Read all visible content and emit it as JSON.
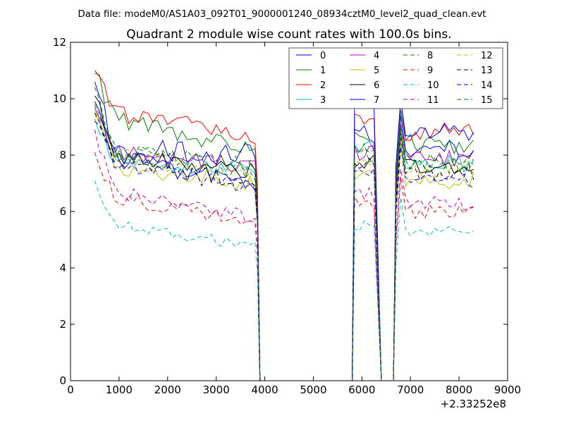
{
  "chart_data": {
    "type": "line",
    "header": "Data file: modeM0/AS1A03_092T01_9000001240_08934cztM0_level2_quad_clean.evt",
    "title": "Quadrant 2 module wise count rates with 100.0s bins.",
    "xlabel": "",
    "ylabel": "",
    "x_offset_label": "+2.33252e8",
    "xlim": [
      0,
      9000
    ],
    "ylim": [
      0,
      12
    ],
    "x_ticks": [
      0,
      1000,
      2000,
      3000,
      4000,
      5000,
      6000,
      7000,
      8000,
      9000
    ],
    "y_ticks": [
      0,
      2,
      4,
      6,
      8,
      10,
      12
    ],
    "x_tick_labels": [
      "0",
      "1000",
      "2000",
      "3000",
      "4000",
      "5000",
      "6000",
      "7000",
      "8000",
      "9000"
    ],
    "y_tick_labels": [
      "0",
      "2",
      "4",
      "6",
      "8",
      "10",
      "12"
    ],
    "grid": false,
    "legend_position": "top-right",
    "bins_seconds": 100.0,
    "segments": [
      {
        "x_start": 500,
        "x_end": 3800
      },
      {
        "x_start": 5850,
        "x_end": 6250
      },
      {
        "x_start": 6700,
        "x_end": 8350
      }
    ],
    "series": [
      {
        "name": "0",
        "color": "#0000ff",
        "dash": "solid",
        "seg_levels": [
          8.1,
          8.6,
          8.2
        ],
        "start_value": 10.6,
        "settle_value": 8.2,
        "end_value": 6.7,
        "variation": 0.45
      },
      {
        "name": "1",
        "color": "#008000",
        "dash": "solid",
        "seg_levels": [
          8.2,
          8.5,
          8.4
        ],
        "start_value": 10.9,
        "settle_value": 9.3,
        "end_value": 7.9,
        "variation": 0.35
      },
      {
        "name": "2",
        "color": "#ff0000",
        "dash": "solid",
        "seg_levels": [
          8.7,
          9.4,
          8.8
        ],
        "start_value": 11.0,
        "settle_value": 9.5,
        "end_value": 8.3,
        "variation": 0.3
      },
      {
        "name": "3",
        "color": "#00bfbf",
        "dash": "solid",
        "seg_levels": [
          7.4,
          8.3,
          7.7
        ],
        "start_value": 9.3,
        "settle_value": 7.9,
        "end_value": 7.4,
        "variation": 0.3
      },
      {
        "name": "4",
        "color": "#bf00bf",
        "dash": "solid",
        "seg_levels": [
          7.6,
          8.1,
          7.9
        ],
        "start_value": 9.7,
        "settle_value": 8.1,
        "end_value": 7.3,
        "variation": 0.3
      },
      {
        "name": "5",
        "color": "#bfbf00",
        "dash": "solid",
        "seg_levels": [
          7.0,
          7.4,
          7.1
        ],
        "start_value": 9.6,
        "settle_value": 7.6,
        "end_value": 7.0,
        "variation": 0.3
      },
      {
        "name": "6",
        "color": "#000000",
        "dash": "solid",
        "seg_levels": [
          7.4,
          7.8,
          7.6
        ],
        "start_value": 10.1,
        "settle_value": 8.0,
        "end_value": 7.6,
        "variation": 0.3
      },
      {
        "name": "7",
        "color": "#0000ff",
        "dash": "solid",
        "seg_levels": [
          7.0,
          9.8,
          8.8
        ],
        "start_value": 9.9,
        "settle_value": 7.9,
        "end_value": 8.7,
        "variation": 0.35
      },
      {
        "name": "8",
        "color": "#008000",
        "dash": "dashed",
        "seg_levels": [
          7.3,
          8.1,
          7.6
        ],
        "start_value": 10.4,
        "settle_value": 8.2,
        "end_value": 6.4,
        "variation": 0.35
      },
      {
        "name": "9",
        "color": "#ff0000",
        "dash": "dashed",
        "seg_levels": [
          5.6,
          6.3,
          6.0
        ],
        "start_value": 8.1,
        "settle_value": 6.5,
        "end_value": 5.7,
        "variation": 0.25
      },
      {
        "name": "10",
        "color": "#00bfbf",
        "dash": "dashed",
        "seg_levels": [
          4.8,
          5.5,
          5.3
        ],
        "start_value": 7.1,
        "settle_value": 5.5,
        "end_value": 4.5,
        "variation": 0.2
      },
      {
        "name": "11",
        "color": "#bf00bf",
        "dash": "dashed",
        "seg_levels": [
          5.8,
          6.6,
          6.3
        ],
        "start_value": 8.9,
        "settle_value": 6.7,
        "end_value": 5.8,
        "variation": 0.25
      },
      {
        "name": "12",
        "color": "#bfbf00",
        "dash": "dashed",
        "seg_levels": [
          7.2,
          7.9,
          7.5
        ],
        "start_value": 9.4,
        "settle_value": 8.0,
        "end_value": 7.4,
        "variation": 0.3
      },
      {
        "name": "13",
        "color": "#000000",
        "dash": "dashed",
        "seg_levels": [
          7.0,
          7.6,
          7.4
        ],
        "start_value": 9.5,
        "settle_value": 7.8,
        "end_value": 7.7,
        "variation": 0.3
      },
      {
        "name": "14",
        "color": "#0000ff",
        "dash": "dashed",
        "seg_levels": [
          6.9,
          7.4,
          7.1
        ],
        "start_value": 9.2,
        "settle_value": 7.7,
        "end_value": 6.9,
        "variation": 0.3
      },
      {
        "name": "15",
        "color": "#008000",
        "dash": "dashed",
        "seg_levels": [
          7.6,
          8.1,
          7.8
        ],
        "start_value": 9.8,
        "settle_value": 8.2,
        "end_value": 7.5,
        "variation": 0.3
      }
    ]
  }
}
